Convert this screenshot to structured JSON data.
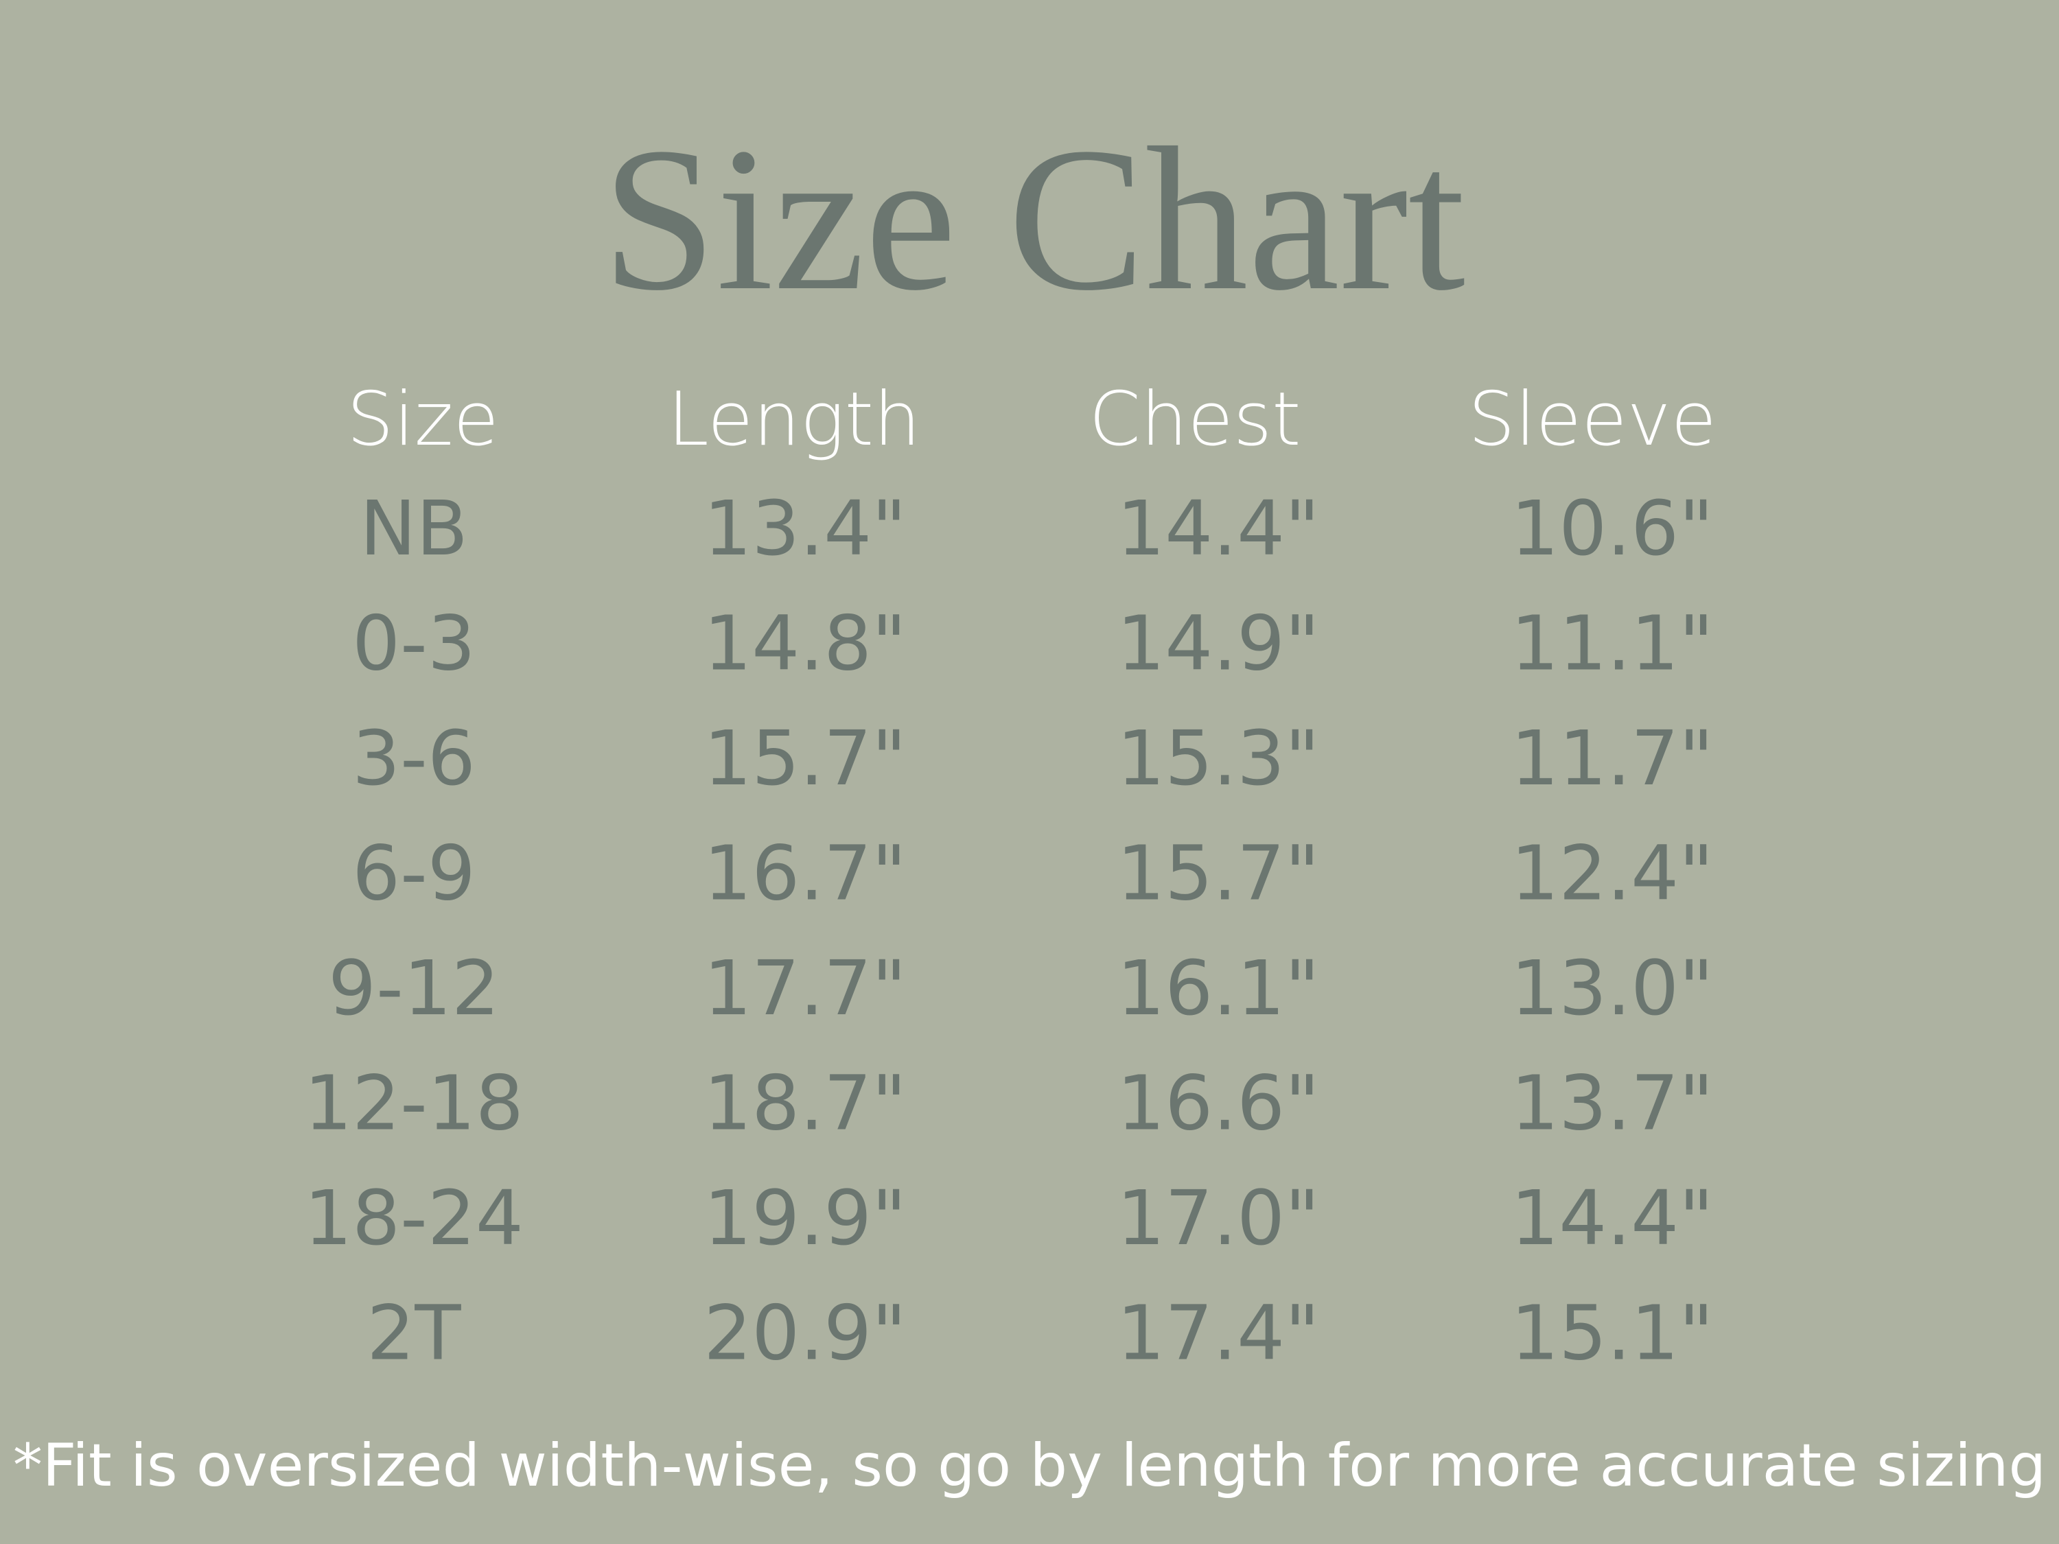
{
  "title": "Size Chart",
  "table": {
    "header": [
      "Size",
      "Length",
      "Chest",
      "Sleeve"
    ],
    "rows": [
      [
        "NB",
        "13.4\"",
        "14.4\"",
        "10.6\""
      ],
      [
        "0-3",
        "14.8\"",
        "14.9\"",
        "11.1\""
      ],
      [
        "3-6",
        "15.7\"",
        "15.3\"",
        "11.7\""
      ],
      [
        "6-9",
        "16.7\"",
        "15.7\"",
        "12.4\""
      ],
      [
        "9-12",
        "17.7\"",
        "16.1\"",
        "13.0\""
      ],
      [
        "12-18",
        "18.7\"",
        "16.6\"",
        "13.7\""
      ],
      [
        "18-24",
        "19.9\"",
        "17.0\"",
        "14.4\""
      ],
      [
        "2T",
        "20.9\"",
        "17.4\"",
        "15.1\""
      ]
    ]
  },
  "footnote": "*Fit is oversized width-wise, so go by length for more accurate sizing"
}
